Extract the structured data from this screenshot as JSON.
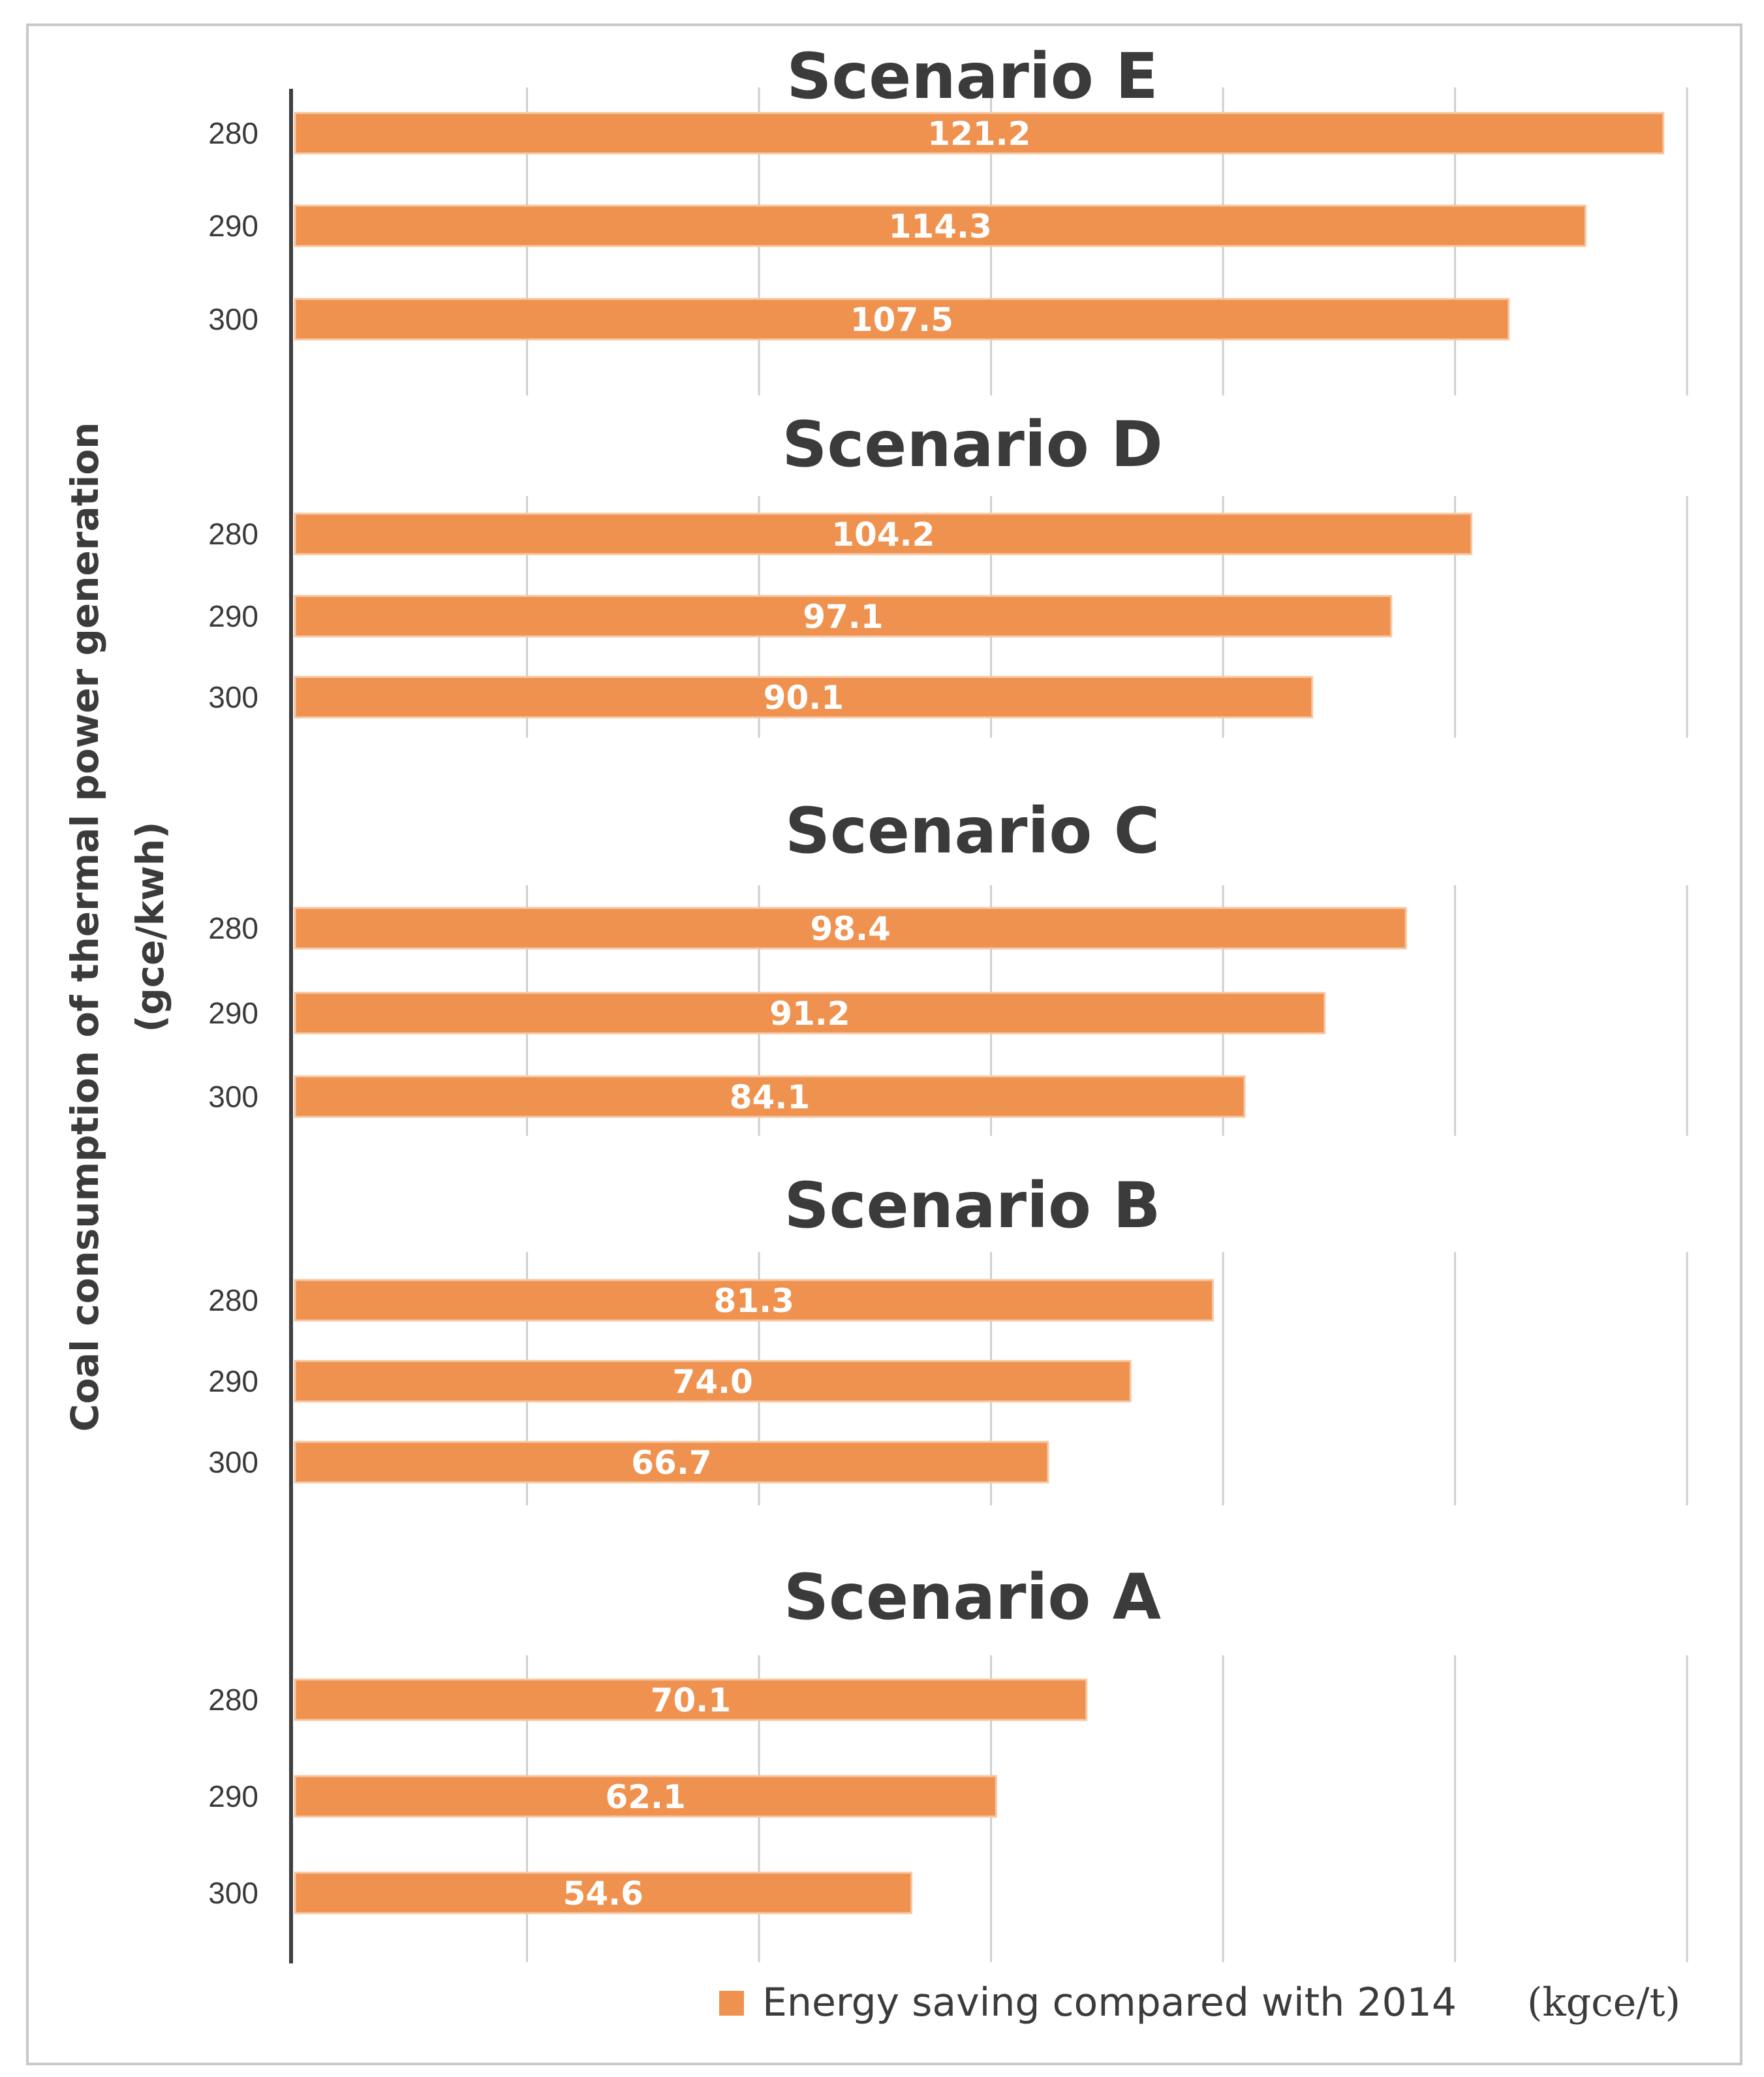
{
  "chart_data": {
    "type": "bar",
    "orientation": "horizontal",
    "ylabel": "Coal consumption of thermal power generation",
    "ylabel_unit": "(gce/kwh)",
    "legend": {
      "label": "Energy saving compared with 2014",
      "unit": "(kgce/t)",
      "color": "#f0924f",
      "placement": "bottom-right"
    },
    "bar_color": "#f0924f",
    "grid": true,
    "xlim": [
      0,
      125
    ],
    "groups": [
      {
        "title": "Scenario E",
        "categories": [
          "280",
          "290",
          "300"
        ],
        "values": [
          121.2,
          114.3,
          107.5
        ],
        "labels": [
          "121.2",
          "114.3",
          "107.5"
        ]
      },
      {
        "title": "Scenario D",
        "categories": [
          "280",
          "290",
          "300"
        ],
        "values": [
          104.2,
          97.1,
          90.1
        ],
        "labels": [
          "104.2",
          "97.1",
          "90.1"
        ]
      },
      {
        "title": "Scenario C",
        "categories": [
          "280",
          "290",
          "300"
        ],
        "values": [
          98.4,
          91.2,
          84.1
        ],
        "labels": [
          "98.4",
          "91.2",
          "84.1"
        ]
      },
      {
        "title": "Scenario B",
        "categories": [
          "280",
          "290",
          "300"
        ],
        "values": [
          81.3,
          74.0,
          66.7
        ],
        "labels": [
          "81.3",
          "74.0",
          "66.7"
        ]
      },
      {
        "title": "Scenario A",
        "categories": [
          "280",
          "290",
          "300"
        ],
        "values": [
          70.1,
          62.1,
          54.6
        ],
        "labels": [
          "70.1",
          "62.1",
          "54.6"
        ]
      }
    ]
  }
}
